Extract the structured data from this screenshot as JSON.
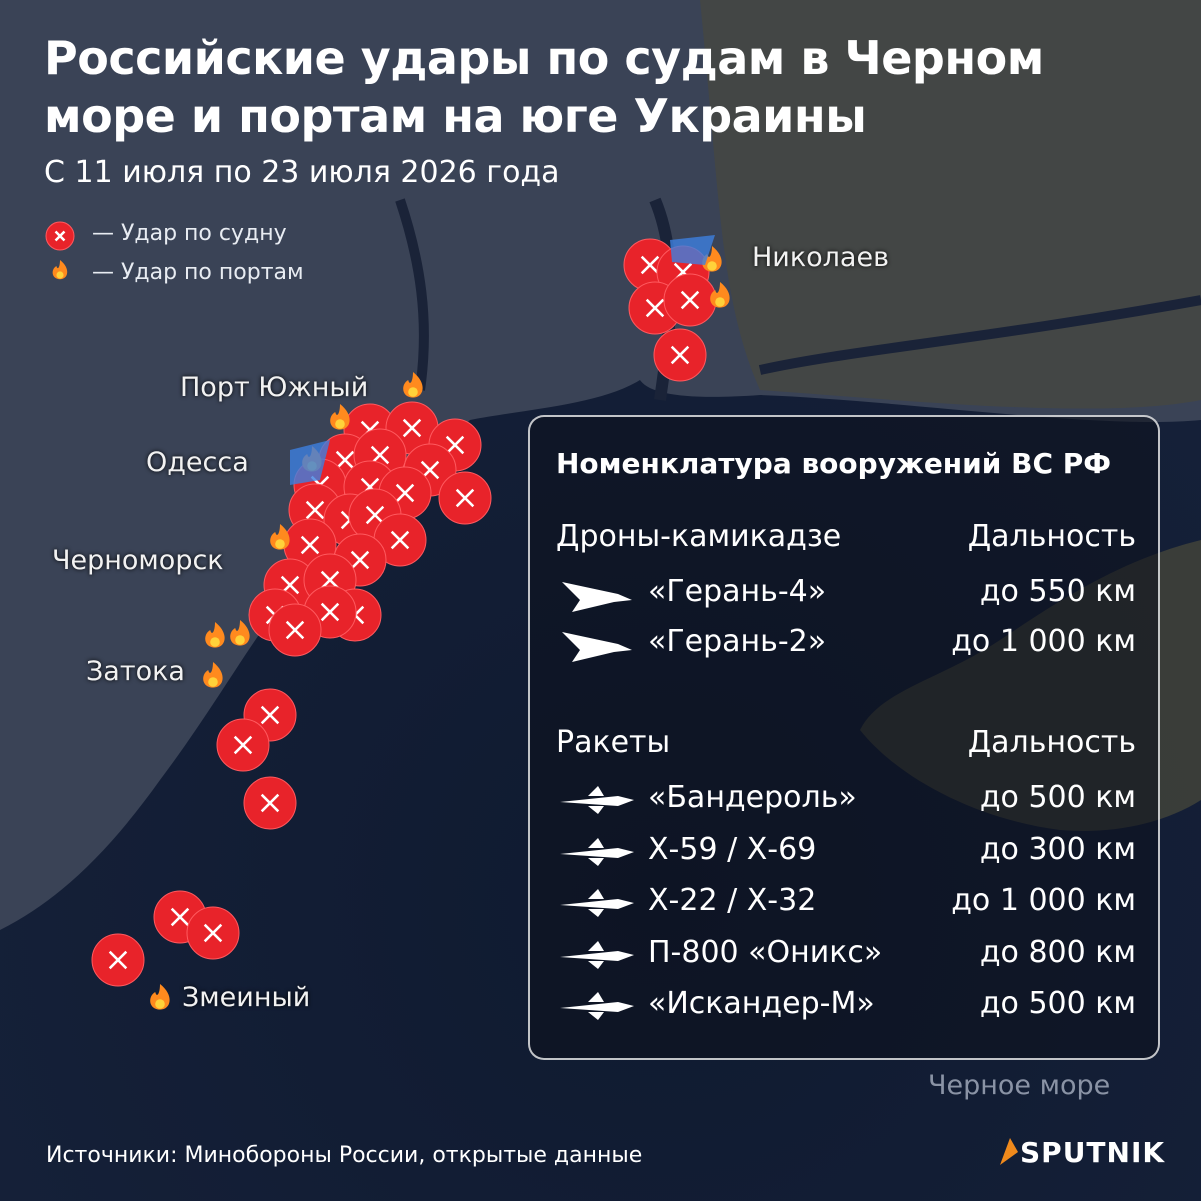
{
  "header": {
    "title": [
      "Российские удары по судам в Черном",
      "море и портам на юге Украины"
    ],
    "subtitle": "С 11 июля по 23 июля 2026 года"
  },
  "legend": [
    "— Удар по судну",
    "— Удар по портам"
  ],
  "places": [
    "Николаев",
    "Порт Южный",
    "Одесса",
    "Черноморск",
    "Затока",
    "Змеиный"
  ],
  "sea_label": "Черное море",
  "panel": {
    "title": "Номенклатура вооружений ВС РФ",
    "groups": [
      {
        "heading": "Дроны-камикадзе",
        "range_heading": "Дальность",
        "items": [
          {
            "name": "«Герань-4»",
            "range": "до 550 км"
          },
          {
            "name": "«Герань-2»",
            "range": "до 1 000 км"
          }
        ]
      },
      {
        "heading": "Ракеты",
        "range_heading": "Дальность",
        "items": [
          {
            "name": "«Бандероль»",
            "range": "до 500 км"
          },
          {
            "name": "Х-59 / Х-69",
            "range": "до 300 км"
          },
          {
            "name": "Х-22 / Х-32",
            "range": "до 1 000 км"
          },
          {
            "name": "П-800 «Оникс»",
            "range": "до 800 км"
          },
          {
            "name": "«Искандер-М»",
            "range": "до 500 км"
          }
        ]
      }
    ]
  },
  "footer": {
    "source": "Источники: Минобороны России, открытые данные",
    "brand": "SPUTNIK"
  }
}
